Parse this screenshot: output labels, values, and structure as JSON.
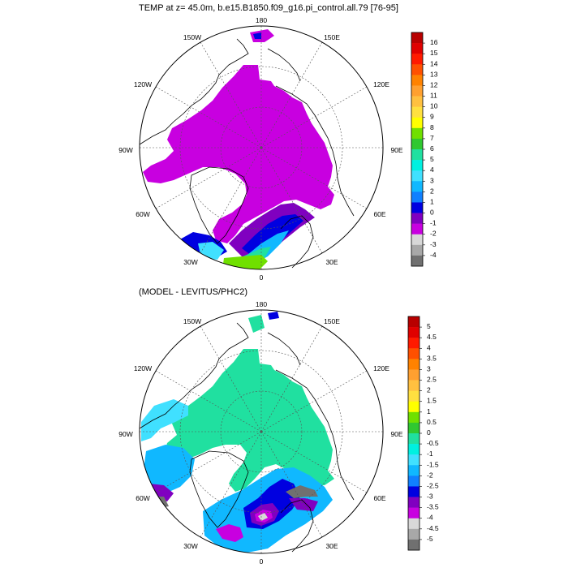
{
  "chart_data": [
    {
      "type": "heatmap",
      "projection": "north-polar-stereographic",
      "title": "TEMP at z=  45.0m, b.e15.B1850.f09_g16.pi_control.all.79 [76-95]",
      "longitude_labels": {
        "top": "180",
        "top_left": "150W",
        "top_right": "150E",
        "upper_left": "120W",
        "upper_right": "120E",
        "left": "90W",
        "right": "90E",
        "lower_left": "60W",
        "lower_right": "60E",
        "bottom_left": "30W",
        "bottom_right": "30E",
        "bottom": "0"
      },
      "colorbar_labels": [
        "16",
        "15",
        "14",
        "13",
        "12",
        "11",
        "10",
        "9",
        "8",
        "7",
        "6",
        "5",
        "4",
        "3",
        "2",
        "1",
        "0",
        "-1",
        "-2",
        "-3",
        "-4"
      ],
      "colorbar_colors": [
        "#b80000",
        "#e00000",
        "#ff1a00",
        "#ff5000",
        "#ff8200",
        "#ffa030",
        "#ffc040",
        "#ffe040",
        "#ffff00",
        "#70e000",
        "#30c830",
        "#20e0a0",
        "#00f0e0",
        "#40e0ff",
        "#10b8ff",
        "#1080ff",
        "#0000e0",
        "#8000c0",
        "#c800e0",
        "#d8d8d8",
        "#a8a8a8",
        "#707070"
      ],
      "dominant_value_range": [
        -2,
        -1
      ],
      "notes": [
        "magenta dominant over central Arctic",
        "warm values 0 to 8 in Nordic and Barents seas"
      ]
    },
    {
      "type": "heatmap",
      "projection": "north-polar-stereographic",
      "title": "(MODEL - LEVITUS/PHC2)",
      "longitude_labels": {
        "top": "180",
        "top_left": "150W",
        "top_right": "150E",
        "upper_left": "120W",
        "upper_right": "120E",
        "left": "90W",
        "right": "90E",
        "lower_left": "60W",
        "lower_right": "60E",
        "bottom_left": "30W",
        "bottom_right": "30E",
        "bottom": "0"
      },
      "colorbar_labels": [
        "5",
        "4.5",
        "4",
        "3.5",
        "3",
        "2.5",
        "2",
        "1.5",
        "1",
        "0.5",
        "0",
        "-0.5",
        "-1",
        "-1.5",
        "-2",
        "-2.5",
        "-3",
        "-3.5",
        "-4",
        "-4.5",
        "-5"
      ],
      "colorbar_colors": [
        "#b80000",
        "#e00000",
        "#ff1a00",
        "#ff5000",
        "#ff8200",
        "#ffa030",
        "#ffc040",
        "#ffe040",
        "#ffff00",
        "#70e000",
        "#30c830",
        "#20e0a0",
        "#00f0e0",
        "#40e0ff",
        "#10b8ff",
        "#1080ff",
        "#0000e0",
        "#8000c0",
        "#c800e0",
        "#d8d8d8",
        "#a8a8a8",
        "#707070"
      ],
      "dominant_value_range": [
        -0.5,
        0
      ],
      "notes": [
        "aquamarine over central Arctic",
        "negative anomalies -1 to -5 in Nordic seas and Baffin Bay"
      ]
    }
  ],
  "colors": {
    "land": "#ffffff",
    "coast": "#000000",
    "grid": "#555555"
  }
}
